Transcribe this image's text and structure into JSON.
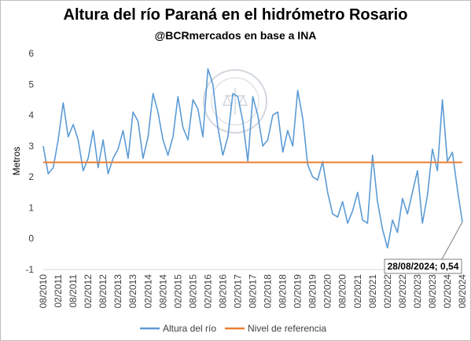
{
  "chart_data": {
    "type": "line",
    "title": "Altura del río Paraná en el hidrómetro Rosario",
    "subtitle": "@BCRmercados en base a INA",
    "ylabel": "Metros",
    "xlabel": "",
    "ylim": [
      -1,
      6
    ],
    "yticks": [
      "-1",
      "0",
      "1",
      "2",
      "3",
      "4",
      "5",
      "6"
    ],
    "xticks": [
      "08/2010",
      "02/2011",
      "08/2011",
      "02/2012",
      "08/2012",
      "02/2013",
      "08/2013",
      "02/2014",
      "08/2014",
      "02/2015",
      "08/2015",
      "02/2016",
      "08/2016",
      "02/2017",
      "08/2017",
      "02/2018",
      "08/2018",
      "02/2019",
      "08/2019",
      "02/2020",
      "08/2020",
      "02/2021",
      "08/2021",
      "02/2022",
      "08/2022",
      "02/2023",
      "08/2023",
      "02/2024",
      "08/2024"
    ],
    "grid": false,
    "legend": "bottom",
    "series": [
      {
        "name": "Altura del río",
        "color": "#5b9bd5",
        "x": [
          "08/2010",
          "10/2010",
          "12/2010",
          "02/2011",
          "04/2011",
          "06/2011",
          "08/2011",
          "10/2011",
          "12/2011",
          "02/2012",
          "04/2012",
          "06/2012",
          "08/2012",
          "10/2012",
          "12/2012",
          "02/2013",
          "04/2013",
          "06/2013",
          "08/2013",
          "10/2013",
          "12/2013",
          "02/2014",
          "04/2014",
          "06/2014",
          "08/2014",
          "10/2014",
          "12/2014",
          "02/2015",
          "04/2015",
          "06/2015",
          "08/2015",
          "10/2015",
          "12/2015",
          "02/2016",
          "04/2016",
          "06/2016",
          "08/2016",
          "10/2016",
          "12/2016",
          "02/2017",
          "04/2017",
          "06/2017",
          "08/2017",
          "10/2017",
          "12/2017",
          "02/2018",
          "04/2018",
          "06/2018",
          "08/2018",
          "10/2018",
          "12/2018",
          "02/2019",
          "04/2019",
          "06/2019",
          "08/2019",
          "10/2019",
          "12/2019",
          "02/2020",
          "04/2020",
          "06/2020",
          "08/2020",
          "10/2020",
          "12/2020",
          "02/2021",
          "04/2021",
          "06/2021",
          "08/2021",
          "10/2021",
          "12/2021",
          "02/2022",
          "04/2022",
          "06/2022",
          "08/2022",
          "10/2022",
          "12/2022",
          "02/2023",
          "04/2023",
          "06/2023",
          "08/2023",
          "10/2023",
          "12/2023",
          "02/2024",
          "04/2024",
          "06/2024",
          "08/2024"
        ],
        "values": [
          3.0,
          2.1,
          2.3,
          3.2,
          4.4,
          3.3,
          3.7,
          3.2,
          2.2,
          2.6,
          3.5,
          2.3,
          3.2,
          2.1,
          2.6,
          2.9,
          3.5,
          2.6,
          4.1,
          3.8,
          2.6,
          3.3,
          4.7,
          4.1,
          3.2,
          2.7,
          3.3,
          4.6,
          3.6,
          3.2,
          4.5,
          4.2,
          3.3,
          5.5,
          5.0,
          3.6,
          2.7,
          3.3,
          4.7,
          4.6,
          3.8,
          2.5,
          4.6,
          4.0,
          3.0,
          3.2,
          4.0,
          4.1,
          2.8,
          3.5,
          3.0,
          4.8,
          3.9,
          2.4,
          2.0,
          1.9,
          2.5,
          1.5,
          0.8,
          0.7,
          1.2,
          0.5,
          0.9,
          1.5,
          0.6,
          0.5,
          2.7,
          1.2,
          0.3,
          -0.3,
          0.6,
          0.2,
          1.3,
          0.8,
          1.5,
          2.2,
          0.5,
          1.4,
          2.9,
          2.2,
          4.5,
          2.5,
          2.8,
          1.6,
          0.54
        ]
      },
      {
        "name": "Nivel de referencia",
        "color": "#ed7d31",
        "values": [
          2.47
        ]
      }
    ],
    "annotation": "28/08/2024; 0,54"
  }
}
